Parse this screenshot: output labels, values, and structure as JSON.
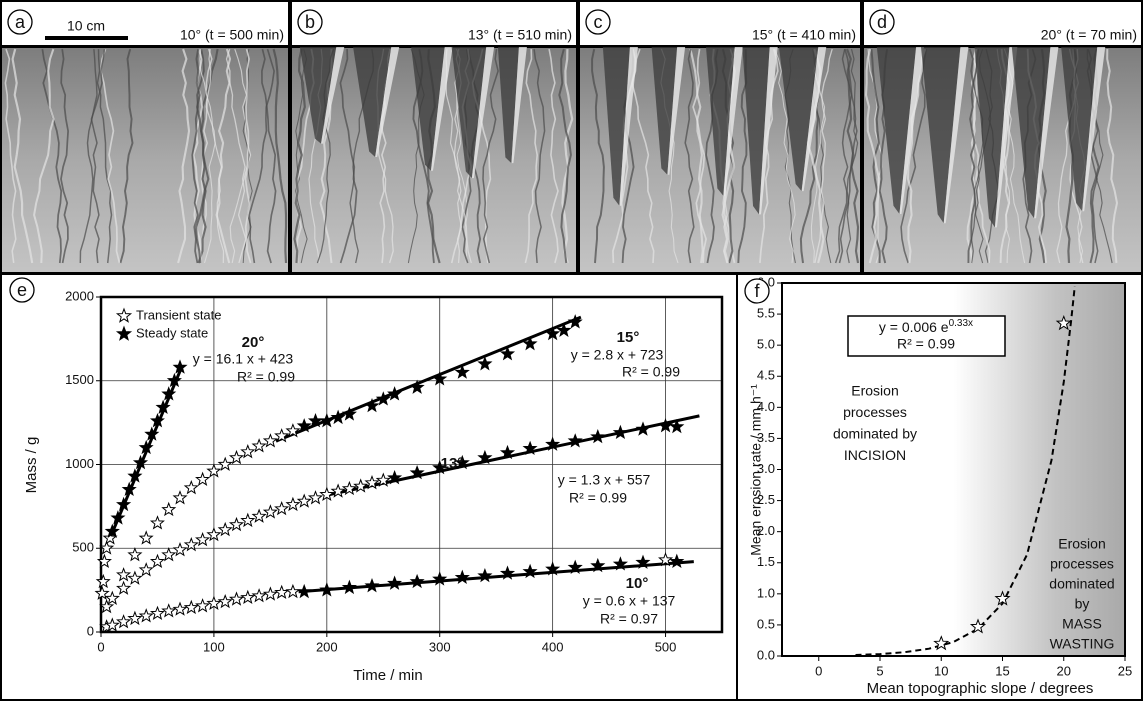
{
  "panels": [
    {
      "letter": "a",
      "label": "10°  (t = 500 min)",
      "scale_bar": "10 cm"
    },
    {
      "letter": "b",
      "label": "13° (t = 510 min)"
    },
    {
      "letter": "c",
      "label": "15° (t = 410 min)"
    },
    {
      "letter": "d",
      "label": "20° (t = 70 min)"
    }
  ],
  "chart_data": [
    {
      "type": "scatter",
      "letter": "e",
      "x_label": "Time / min",
      "y_label": "Mass / g",
      "xlim": [
        0,
        550
      ],
      "ylim": [
        0,
        2000
      ],
      "xticks": [
        0,
        100,
        200,
        300,
        400,
        500
      ],
      "yticks": [
        0,
        500,
        1000,
        1500,
        2000
      ],
      "grid": true,
      "legend": [
        "Transient state",
        "Steady state"
      ],
      "series": [
        {
          "name": "10°",
          "color": "#000000",
          "transient": {
            "x": [
              5,
              10,
              20,
              30,
              40,
              50,
              60,
              70,
              80,
              90,
              100,
              110,
              120,
              130,
              140,
              150,
              160,
              170,
              500
            ],
            "y": [
              30,
              40,
              60,
              80,
              95,
              110,
              125,
              135,
              145,
              155,
              170,
              180,
              195,
              205,
              215,
              225,
              235,
              240,
              430
            ]
          },
          "steady": {
            "x": [
              180,
              200,
              220,
              240,
              260,
              280,
              300,
              320,
              340,
              360,
              380,
              400,
              420,
              440,
              460,
              480,
              510
            ],
            "y": [
              240,
              250,
              265,
              275,
              290,
              300,
              315,
              325,
              335,
              350,
              360,
              375,
              385,
              395,
              405,
              415,
              420
            ]
          },
          "fit": {
            "x": [
              175,
              525
            ],
            "y": [
              240,
              420
            ]
          },
          "equation": "y = 0.6 x + 137",
          "r2": "R² = 0.97"
        },
        {
          "name": "13°",
          "color": "#000000",
          "transient": {
            "x": [
              5,
              10,
              20,
              30,
              40,
              50,
              60,
              70,
              80,
              90,
              100,
              110,
              120,
              130,
              140,
              150,
              160,
              170,
              180,
              190,
              200,
              210,
              220,
              230,
              240,
              250
            ],
            "y": [
              150,
              200,
              260,
              320,
              370,
              420,
              460,
              490,
              520,
              550,
              580,
              610,
              640,
              665,
              690,
              715,
              735,
              760,
              780,
              800,
              820,
              840,
              855,
              870,
              890,
              905
            ]
          },
          "steady": {
            "x": [
              260,
              280,
              300,
              320,
              340,
              360,
              380,
              400,
              420,
              440,
              460,
              480,
              500,
              510
            ],
            "y": [
              920,
              950,
              980,
              1010,
              1040,
              1070,
              1095,
              1120,
              1140,
              1165,
              1190,
              1210,
              1230,
              1225
            ]
          },
          "fit": {
            "x": [
              200,
              530
            ],
            "y": [
              817,
              1290
            ]
          },
          "equation": "y = 1.3 x + 557",
          "r2": "R² = 0.99"
        },
        {
          "name": "15°",
          "color": "#000000",
          "transient": {
            "x": [
              20,
              30,
              40,
              50,
              60,
              70,
              80,
              90,
              100,
              110,
              120,
              130,
              140,
              150,
              160,
              170
            ],
            "y": [
              340,
              460,
              560,
              650,
              730,
              800,
              860,
              910,
              960,
              1000,
              1040,
              1075,
              1110,
              1140,
              1170,
              1200
            ]
          },
          "steady": {
            "x": [
              180,
              190,
              200,
              210,
              220,
              240,
              250,
              260,
              280,
              300,
              320,
              340,
              360,
              380,
              400,
              410,
              420
            ],
            "y": [
              1230,
              1260,
              1260,
              1280,
              1300,
              1350,
              1390,
              1420,
              1460,
              1510,
              1550,
              1600,
              1660,
              1720,
              1780,
              1800,
              1850
            ]
          },
          "fit": {
            "x": [
              155,
              425
            ],
            "y": [
              1140,
              1880
            ]
          },
          "equation": "y = 2.8 x + 723",
          "r2": "R² = 0.99"
        },
        {
          "name": "20°",
          "color": "#000000",
          "transient": {
            "x": [
              1,
              2,
              3,
              5,
              8
            ],
            "y": [
              230,
              300,
              420,
              500,
              560
            ]
          },
          "steady": {
            "x": [
              10,
              15,
              20,
              25,
              30,
              35,
              40,
              45,
              50,
              55,
              60,
              65,
              70
            ],
            "y": [
              600,
              680,
              760,
              850,
              930,
              1010,
              1100,
              1180,
              1260,
              1340,
              1420,
              1500,
              1580
            ]
          },
          "fit": {
            "x": [
              8,
              72
            ],
            "y": [
              560,
              1590
            ]
          },
          "equation": "y = 16.1 x + 423",
          "r2": "R² = 0.99"
        }
      ]
    },
    {
      "type": "scatter",
      "letter": "f",
      "x_label": "Mean topographic slope / degrees",
      "y_label": "Mean erosion rate / mm.h⁻¹",
      "xlim": [
        -3,
        25
      ],
      "ylim": [
        0,
        6
      ],
      "xticks": [
        0,
        5,
        10,
        15,
        20,
        25
      ],
      "yticks": [
        {
          "value": 0,
          "label": "0.0"
        },
        0.5,
        {
          "value": 1,
          "label": "1.0"
        },
        1.5,
        {
          "value": 2,
          "label": "2.0"
        },
        2.5,
        {
          "value": 3,
          "label": "3.0"
        },
        3.5,
        {
          "value": 4,
          "label": "4.0"
        },
        4.5,
        {
          "value": 5,
          "label": "5.0"
        },
        5.5,
        {
          "value": 6,
          "label": "6.0"
        }
      ],
      "x": [
        10,
        13,
        15,
        20
      ],
      "values": [
        0.2,
        0.47,
        0.92,
        5.35
      ],
      "color": "#000000",
      "curve": {
        "x": [
          3,
          5,
          7,
          9,
          11,
          13,
          15,
          17,
          19,
          20,
          20.6,
          20.9
        ],
        "y": [
          0.016,
          0.031,
          0.061,
          0.117,
          0.226,
          0.437,
          0.845,
          1.63,
          3.15,
          4.41,
          5.39,
          5.95
        ],
        "style": "dashed"
      },
      "equation": {
        "base": "y = 0.006 e",
        "exponent": "0.33x"
      },
      "r2": "R² = 0.99",
      "regions": [
        [
          "Erosion",
          "processes",
          "dominated by",
          "INCISION"
        ],
        [
          "Erosion",
          "processes",
          "dominated",
          "by",
          "MASS",
          "WASTING"
        ]
      ]
    }
  ]
}
